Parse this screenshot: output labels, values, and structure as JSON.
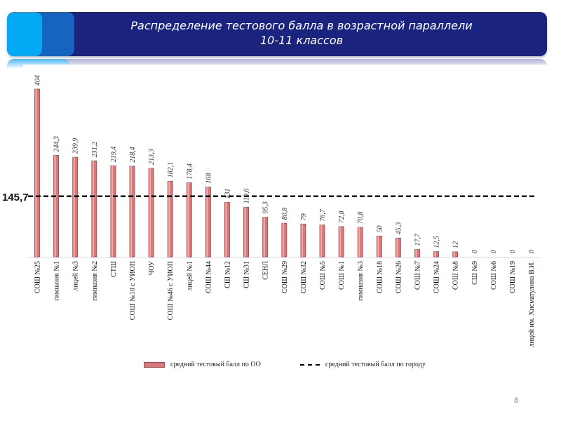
{
  "header": {
    "title_line1": "Распределение тестового балла в возрастной параллели",
    "title_line2": "10-11 классов"
  },
  "chart_data": {
    "type": "bar",
    "title": "Распределение тестового балла в возрастной параллели 10-11 классов",
    "categories": [
      "СОШ №25",
      "гимназия №1",
      "лицей №3",
      "гимназия №2",
      "СТШ",
      "СОШ №10 с УИОП",
      "ЧОУ",
      "СОШ №46 с УИОП",
      "лицей №1",
      "СОШ №44",
      "СШ №12",
      "СШ №31",
      "СЕНЛ",
      "СОШ №29",
      "СОШ №32",
      "СОШ №5",
      "СОШ №1",
      "гимназия №3",
      "СОШ №18",
      "СОШ №26",
      "СОШ №7",
      "СОШ №24",
      "СОШ №8",
      "СШ №9",
      "СОШ №6",
      "СОШ №19",
      "лицей им. Хисматулина В.И."
    ],
    "series": [
      {
        "name": "средний тестовый балл по ОО",
        "values": [
          404,
          244.3,
          239.9,
          231.2,
          219.4,
          218.4,
          213.3,
          182.1,
          178.4,
          168,
          131,
          119.6,
          95.3,
          80.8,
          79,
          76.7,
          72.8,
          70.8,
          50,
          45.3,
          17.7,
          12.5,
          12,
          0,
          0,
          0,
          0
        ],
        "labels": [
          "404",
          "244,3",
          "239,9",
          "231,2",
          "219,4",
          "218,4",
          "213,3",
          "182,1",
          "178,4",
          "168",
          "131",
          "119,6",
          "95,3",
          "80,8",
          "79",
          "76,7",
          "72,8",
          "70,8",
          "50",
          "45,3",
          "17,7",
          "12,5",
          "12",
          "0",
          "0",
          "0",
          "0"
        ]
      }
    ],
    "reference_line": {
      "name": "средний тестовый балл по городу",
      "value": 145.7,
      "label": "145,7"
    },
    "ylim": [
      0,
      404
    ],
    "grid": false,
    "legend": "bottom",
    "colors": {
      "bar": "#d9787a",
      "bar_edge": "#a04445",
      "line": "#000000"
    }
  },
  "page_number": "8"
}
